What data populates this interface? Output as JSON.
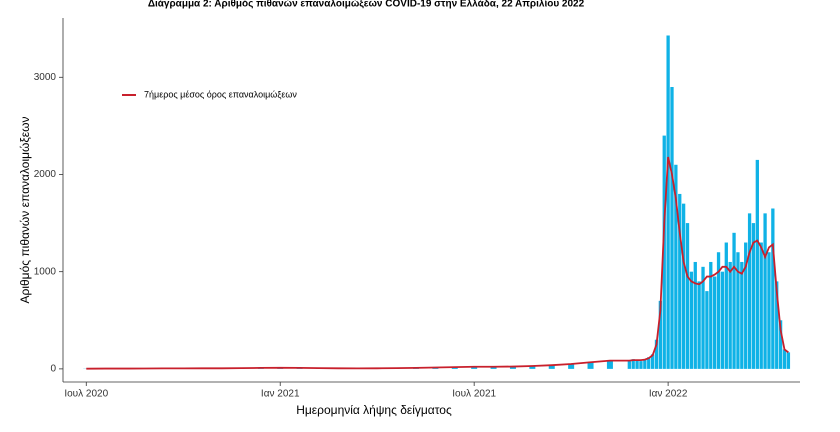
{
  "chart_data": {
    "type": "bar",
    "title": "Διάγραμμα 2: Αριθμός πιθανών επαναλοιμώξεων COVID-19 στην Ελλάδα, 22 Απριλίου 2022",
    "x_label": "Ημερομηνία λήψης δείγματος",
    "y_label": "Αριθμός πιθανών επαναλοιμώξεων",
    "color": "#0fb2e6",
    "x": [
      2020.5,
      2020.55,
      2020.6,
      2020.65,
      2020.7,
      2020.75,
      2020.8,
      2020.85,
      2020.9,
      2020.95,
      2021.0,
      2021.05,
      2021.1,
      2021.15,
      2021.2,
      2021.25,
      2021.3,
      2021.35,
      2021.4,
      2021.45,
      2021.5,
      2021.55,
      2021.6,
      2021.65,
      2021.7,
      2021.75,
      2021.8,
      2021.85,
      2021.9,
      2021.91,
      2021.92,
      2021.93,
      2021.94,
      2021.95,
      2021.96,
      2021.97,
      2021.98,
      2021.99,
      2022.0,
      2022.01,
      2022.02,
      2022.03,
      2022.04,
      2022.05,
      2022.06,
      2022.07,
      2022.08,
      2022.09,
      2022.1,
      2022.11,
      2022.12,
      2022.13,
      2022.14,
      2022.15,
      2022.16,
      2022.17,
      2022.18,
      2022.19,
      2022.2,
      2022.21,
      2022.22,
      2022.23,
      2022.24,
      2022.25,
      2022.26,
      2022.27,
      2022.28,
      2022.29,
      2022.3,
      2022.31
    ],
    "values": [
      2,
      3,
      3,
      4,
      5,
      5,
      6,
      6,
      8,
      10,
      12,
      10,
      8,
      6,
      5,
      6,
      8,
      10,
      15,
      20,
      25,
      20,
      25,
      30,
      40,
      50,
      70,
      90,
      80,
      100,
      90,
      80,
      100,
      120,
      150,
      300,
      700,
      2400,
      3430,
      2900,
      2100,
      1800,
      1700,
      1500,
      1000,
      1100,
      900,
      1050,
      800,
      1100,
      950,
      1200,
      1000,
      1300,
      1100,
      1400,
      1200,
      1100,
      1300,
      1600,
      1500,
      2150,
      1300,
      1600,
      1200,
      1650,
      900,
      500,
      200,
      170
    ],
    "series": [
      {
        "name": "7ήμερος μέσος όρος επαναλοιμώξεων",
        "color": "#c8202c",
        "values": [
          2,
          3,
          3,
          4,
          5,
          5,
          6,
          6,
          8,
          10,
          11,
          10,
          8,
          6,
          5,
          6,
          8,
          10,
          14,
          18,
          22,
          22,
          24,
          30,
          38,
          50,
          68,
          85,
          85,
          90,
          90,
          90,
          95,
          110,
          140,
          250,
          600,
          1500,
          2180,
          2000,
          1750,
          1400,
          1100,
          950,
          900,
          880,
          870,
          900,
          950,
          950,
          970,
          1000,
          1050,
          1050,
          1000,
          1050,
          1000,
          980,
          1050,
          1200,
          1300,
          1320,
          1250,
          1150,
          1250,
          1280,
          800,
          400,
          200,
          170
        ]
      }
    ],
    "xlim": [
      2020.44,
      2022.34
    ],
    "xticks": [
      {
        "value": 2020.5,
        "label": "Ιουλ 2020"
      },
      {
        "value": 2021.0,
        "label": "Ιαν 2021"
      },
      {
        "value": 2021.5,
        "label": "Ιουλ 2021"
      },
      {
        "value": 2022.0,
        "label": "Ιαν 2022"
      }
    ],
    "ylim": [
      -135,
      3610
    ],
    "yticks": [
      0,
      1000,
      2000,
      3000
    ],
    "grid": false,
    "legend": "top-left"
  }
}
